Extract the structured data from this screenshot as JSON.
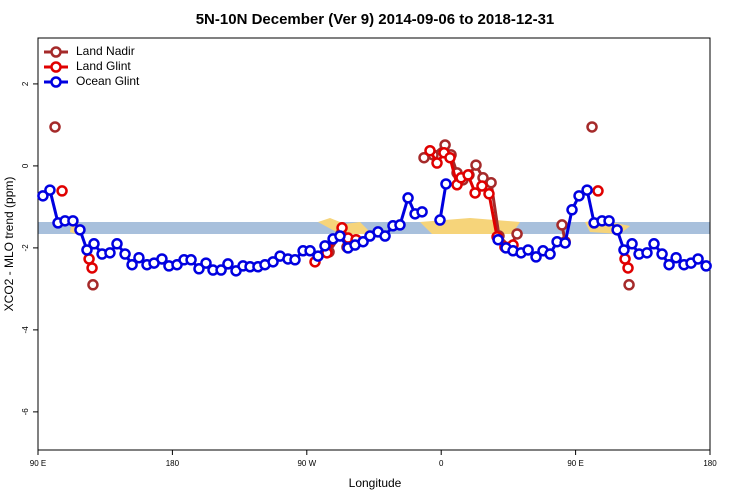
{
  "chart_data": {
    "type": "line",
    "title": "5N-10N December (Ver 9)   2014-09-06 to 2018-12-31",
    "x_label": "Longitude",
    "y_label": "XCO2 - MLO trend (ppm)",
    "xlim": [
      90,
      540
    ],
    "ylim": [
      -6.93,
      3.12
    ],
    "xticks": [
      {
        "value": 90,
        "label": "90 E"
      },
      {
        "value": 180,
        "label": "180"
      },
      {
        "value": 270,
        "label": "90 W"
      },
      {
        "value": 360,
        "label": "0"
      },
      {
        "value": 450,
        "label": "90 E"
      },
      {
        "value": 540,
        "label": "180"
      }
    ],
    "yticks": [
      -6,
      -4,
      -2,
      0,
      2
    ],
    "legend": "top-left",
    "series": [
      {
        "name": "Land Nadir",
        "color": "#a52a2a",
        "x": [
          101.4,
          null,
          126.8,
          null,
          284.9,
          292.9,
          296.9,
          300.3,
          null,
          348.5,
          354.5,
          362.6,
          366.6,
          370.6,
          374.6,
          378.6,
          383.3,
          388.0,
          393.4,
          398.7,
          406.1,
          410.8,
          null,
          440.9,
          443.0,
          null,
          461.0,
          null,
          485.8
        ],
        "values": [
          0.95,
          null,
          -2.9,
          null,
          -2.1,
          -1.66,
          -1.98,
          -1.85,
          null,
          0.2,
          0.27,
          0.51,
          0.27,
          -0.17,
          -0.34,
          -0.22,
          0.02,
          -0.29,
          -0.41,
          -1.71,
          -1.98,
          -1.66,
          null,
          -1.44,
          -1.85,
          null,
          0.95,
          null,
          -2.9
        ]
      },
      {
        "name": "Land Glint",
        "color": "#e00000",
        "x": [
          106.1,
          null,
          124.2,
          126.2,
          null,
          275.5,
          283.5,
          293.6,
          297.6,
          303.0,
          null,
          352.5,
          357.2,
          361.9,
          365.9,
          370.6,
          373.3,
          378.0,
          382.7,
          387.3,
          392.0,
          397.4,
          402.7,
          408.1,
          null,
          465.0,
          null,
          483.1,
          485.1
        ],
        "values": [
          -0.61,
          null,
          -2.27,
          -2.49,
          null,
          -2.34,
          -2.12,
          -1.51,
          -1.76,
          -1.8,
          null,
          0.37,
          0.07,
          0.32,
          0.2,
          -0.46,
          -0.29,
          -0.22,
          -0.66,
          -0.49,
          -0.68,
          -1.73,
          -1.98,
          -1.93,
          null,
          -0.61,
          null,
          -2.27,
          -2.49
        ]
      },
      {
        "name": "Ocean Glint",
        "color": "#0000e0",
        "x": [
          93.3,
          98.0,
          103.4,
          108.1,
          113.4,
          118.1,
          122.8,
          127.5,
          132.9,
          138.2,
          142.9,
          148.3,
          153.0,
          157.6,
          163.0,
          167.7,
          173.0,
          177.7,
          183.1,
          187.8,
          192.5,
          197.8,
          202.5,
          207.2,
          212.6,
          217.2,
          222.6,
          227.3,
          232.0,
          237.3,
          242.0,
          247.4,
          252.1,
          257.4,
          262.1,
          267.5,
          272.2,
          277.5,
          282.2,
          287.6,
          292.2,
          297.6,
          302.3,
          307.7,
          312.3,
          317.7,
          322.4,
          327.7,
          332.4,
          337.8,
          342.5,
          347.2,
          null,
          359.2,
          363.2,
          null,
          398.1,
          403.4,
          408.1,
          413.5,
          418.2,
          423.5,
          428.2,
          432.9,
          437.6,
          443.0,
          447.6,
          452.3,
          457.7,
          462.4,
          467.7,
          472.4,
          477.8,
          482.4,
          487.8,
          492.5,
          497.8,
          502.5,
          507.9,
          512.6,
          517.3,
          522.6,
          527.3,
          532.0,
          537.4
        ],
        "values": [
          -0.73,
          -0.59,
          -1.39,
          -1.34,
          -1.34,
          -1.56,
          -2.05,
          -1.9,
          -2.15,
          -2.12,
          -1.9,
          -2.15,
          -2.41,
          -2.24,
          -2.41,
          -2.37,
          -2.27,
          -2.44,
          -2.41,
          -2.29,
          -2.29,
          -2.51,
          -2.37,
          -2.54,
          -2.54,
          -2.39,
          -2.56,
          -2.44,
          -2.46,
          -2.46,
          -2.41,
          -2.34,
          -2.2,
          -2.27,
          -2.29,
          -2.07,
          -2.07,
          -2.2,
          -1.95,
          -1.78,
          -1.71,
          -2.0,
          -1.93,
          -1.85,
          -1.71,
          -1.61,
          -1.71,
          -1.46,
          -1.44,
          -0.78,
          -1.17,
          -1.12,
          null,
          -1.32,
          -0.44,
          null,
          -1.8,
          -2.0,
          -2.07,
          -2.12,
          -2.05,
          -2.22,
          -2.07,
          -2.15,
          -1.85,
          -1.88,
          -1.07,
          -0.73,
          -0.59,
          -1.39,
          -1.34,
          -1.34,
          -1.56,
          -2.05,
          -1.9,
          -2.15,
          -2.12,
          -1.9,
          -2.15,
          -2.41,
          -2.24,
          -2.41,
          -2.37,
          -2.27,
          -2.44
        ]
      }
    ]
  }
}
